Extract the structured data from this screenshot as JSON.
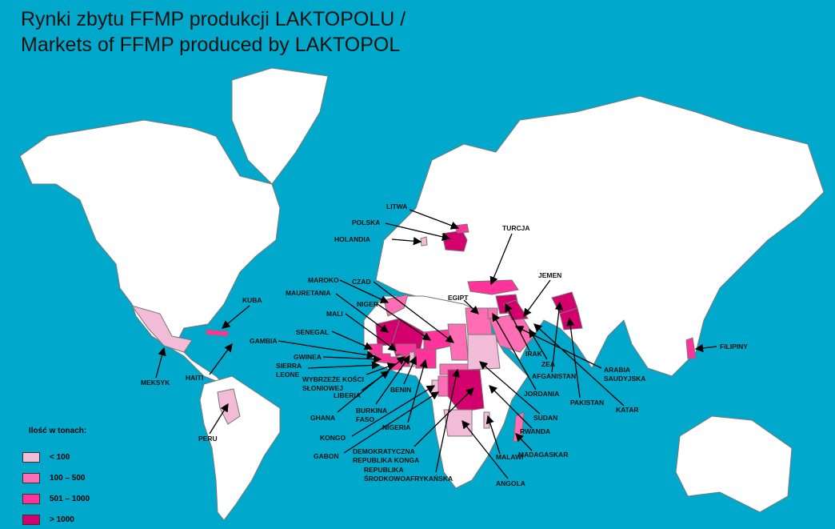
{
  "title_line1": "Rynki zbytu FFMP produkcji LAKTOPOLU /",
  "title_line2": "Markets of FFMP produced by LAKTOPOL",
  "legend": {
    "title": "Ilość w tonach:",
    "items": [
      {
        "label": "< 100",
        "color": "#f2bcd8"
      },
      {
        "label": "100 – 500",
        "color": "#ff6eb4"
      },
      {
        "label": "501 – 1000",
        "color": "#ff3399"
      },
      {
        "label": "> 1000",
        "color": "#d4006e"
      }
    ]
  },
  "ocean_color": "#00a9cc",
  "countries": {
    "litwa": {
      "label": "LITWA",
      "class": 2
    },
    "polska": {
      "label": "POLSKA",
      "class": 3
    },
    "holandia": {
      "label": "HOLANDIA",
      "class": 0
    },
    "turcja": {
      "label": "TURCJA",
      "class": 2
    },
    "jemen": {
      "label": "JEMEN",
      "class": 3
    },
    "maroko": {
      "label": "MAROKO",
      "class": 1
    },
    "czad": {
      "label": "CZAD",
      "class": 1
    },
    "mauretania": {
      "label": "MAURETANIA",
      "class": 3
    },
    "niger": {
      "label": "NIGER",
      "class": 2
    },
    "egipt": {
      "label": "EGIPT",
      "class": 1
    },
    "mali": {
      "label": "MALI",
      "class": 3
    },
    "senegal": {
      "label": "SENEGAL",
      "class": 2
    },
    "gambia": {
      "label": "GAMBIA",
      "class": 2
    },
    "gwinea": {
      "label": "GWINEA",
      "class": 2
    },
    "sierra_leone": {
      "label1": "SIERRA",
      "label2": "LEONE",
      "class": 2
    },
    "wybrzeze": {
      "label1": "WYBRZEŻE KOŚCI",
      "label2": "SŁONIOWEJ",
      "class": 2
    },
    "liberia": {
      "label": "LIBERIA",
      "class": 1
    },
    "ghana": {
      "label": "GHANA",
      "class": 2
    },
    "burkina": {
      "label1": "BURKINA",
      "label2": "FASO",
      "class": 2
    },
    "benin": {
      "label": "BENIN",
      "class": 0
    },
    "nigeria": {
      "label": "NIGERIA",
      "class": 2
    },
    "kongo": {
      "label": "KONGO",
      "class": 1
    },
    "gabon": {
      "label": "GABON",
      "class": 0
    },
    "drk": {
      "label1": "DEMOKRATYCZNA",
      "label2": "REPUBLIKA KONGA",
      "class": 3
    },
    "rsa": {
      "label1": "REPUBLIKA",
      "label2": "ŚRODKOWOAFRYKAŃSKA",
      "class": 1
    },
    "angola": {
      "label": "ANGOLA",
      "class": 0
    },
    "malawi": {
      "label": "MALAWI",
      "class": 0
    },
    "madagaskar": {
      "label": "MADAGASKAR",
      "class": 1
    },
    "rwanda": {
      "label": "RWANDA",
      "class": 0
    },
    "sudan": {
      "label": "SUDAN",
      "class": 0
    },
    "jordania": {
      "label": "JORDANIA",
      "class": 1
    },
    "afganistan": {
      "label": "AFGANISTAN",
      "class": 3
    },
    "zea": {
      "label": "ZEA",
      "class": 1
    },
    "irak": {
      "label": "IRAK",
      "class": 3
    },
    "arabia": {
      "label1": "ARABIA",
      "label2": "SAUDYJSKA",
      "class": 1
    },
    "pakistan": {
      "label": "PAKISTAN",
      "class": 3
    },
    "katar": {
      "label": "KATAR",
      "class": 1
    },
    "filipiny": {
      "label": "FILIPINY",
      "class": 2
    },
    "kuba": {
      "label": "KUBA",
      "class": 2
    },
    "haiti": {
      "label": "HAITI",
      "class": 2
    },
    "meksyk": {
      "label": "MEKSYK",
      "class": 0
    },
    "peru": {
      "label": "PERU",
      "class": 0
    }
  }
}
